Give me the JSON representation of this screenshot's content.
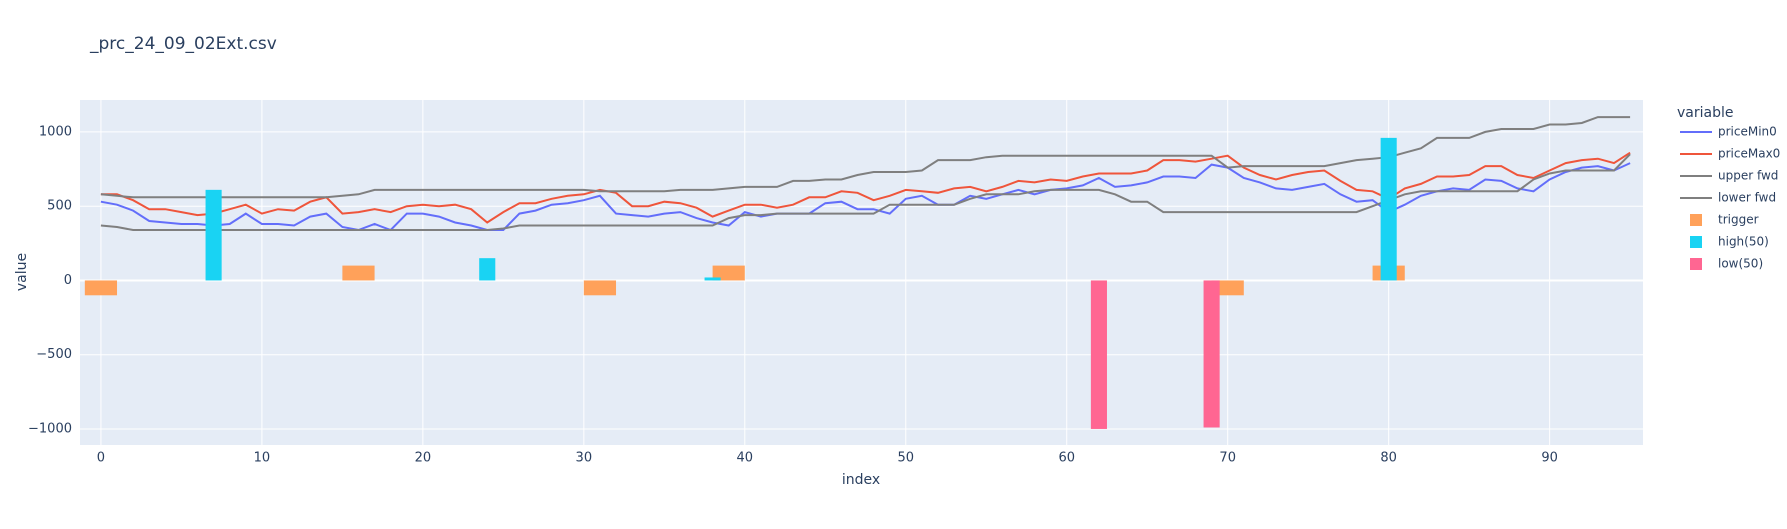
{
  "chart_data": {
    "type": "line",
    "title": "_prc_24_09_02Ext.csv",
    "x_label": "index",
    "y_label": "value",
    "legend_title": "variable",
    "x": [
      0,
      1,
      2,
      3,
      4,
      5,
      6,
      7,
      8,
      9,
      10,
      11,
      12,
      13,
      14,
      15,
      16,
      17,
      18,
      19,
      20,
      21,
      22,
      23,
      24,
      25,
      26,
      27,
      28,
      29,
      30,
      31,
      32,
      33,
      34,
      35,
      36,
      37,
      38,
      39,
      40,
      41,
      42,
      43,
      44,
      45,
      46,
      47,
      48,
      49,
      50,
      51,
      52,
      53,
      54,
      55,
      56,
      57,
      58,
      59,
      60,
      61,
      62,
      63,
      64,
      65,
      66,
      67,
      68,
      69,
      70,
      71,
      72,
      73,
      74,
      75,
      76,
      77,
      78,
      79,
      80,
      81,
      82,
      83,
      84,
      85,
      86,
      87,
      88,
      89,
      90,
      91,
      92,
      93,
      94,
      95
    ],
    "xlim": [
      -1.3,
      95.8
    ],
    "xticks": [
      0,
      10,
      20,
      30,
      40,
      50,
      60,
      70,
      80,
      90
    ],
    "ylim": [
      -1108,
      1215
    ],
    "yticks": [
      {
        "value": -1000,
        "label": "−1000"
      },
      {
        "value": -500,
        "label": "−500"
      },
      0,
      500,
      1000
    ],
    "grid": true,
    "series": [
      {
        "name": "priceMin0",
        "color": "#636efa",
        "kind": "line",
        "values": [
          530,
          510,
          470,
          400,
          390,
          380,
          380,
          370,
          380,
          450,
          380,
          380,
          370,
          430,
          450,
          360,
          340,
          380,
          340,
          450,
          450,
          430,
          390,
          370,
          340,
          340,
          450,
          470,
          510,
          520,
          540,
          570,
          450,
          440,
          430,
          450,
          460,
          420,
          390,
          370,
          460,
          430,
          450,
          450,
          450,
          520,
          530,
          480,
          480,
          450,
          550,
          570,
          510,
          510,
          570,
          550,
          580,
          610,
          580,
          610,
          620,
          640,
          690,
          630,
          640,
          660,
          700,
          700,
          690,
          780,
          760,
          690,
          660,
          620,
          610,
          630,
          650,
          580,
          530,
          540,
          460,
          510,
          570,
          600,
          620,
          610,
          680,
          670,
          620,
          600,
          680,
          730,
          760,
          770,
          740,
          790
        ]
      },
      {
        "name": "priceMax0",
        "color": "#EF553B",
        "kind": "line",
        "values": [
          580,
          580,
          540,
          480,
          480,
          460,
          440,
          450,
          480,
          510,
          450,
          480,
          470,
          530,
          560,
          450,
          460,
          480,
          460,
          500,
          510,
          500,
          510,
          480,
          390,
          460,
          520,
          520,
          550,
          570,
          580,
          610,
          590,
          500,
          500,
          530,
          520,
          490,
          430,
          470,
          510,
          510,
          490,
          510,
          560,
          560,
          600,
          590,
          540,
          570,
          610,
          600,
          590,
          620,
          630,
          600,
          630,
          670,
          660,
          680,
          670,
          700,
          720,
          720,
          720,
          740,
          810,
          810,
          800,
          820,
          840,
          760,
          710,
          680,
          710,
          730,
          740,
          670,
          610,
          600,
          550,
          620,
          650,
          700,
          700,
          710,
          770,
          770,
          710,
          690,
          740,
          790,
          810,
          820,
          790,
          860
        ]
      },
      {
        "name": "upper fwd",
        "color": "#7f7f7f",
        "kind": "line",
        "values": [
          580,
          570,
          560,
          560,
          560,
          560,
          560,
          560,
          560,
          560,
          560,
          560,
          560,
          560,
          560,
          570,
          580,
          610,
          610,
          610,
          610,
          610,
          610,
          610,
          610,
          610,
          610,
          610,
          610,
          610,
          610,
          600,
          600,
          600,
          600,
          600,
          610,
          610,
          610,
          620,
          630,
          630,
          630,
          670,
          670,
          680,
          680,
          710,
          730,
          730,
          730,
          740,
          810,
          810,
          810,
          830,
          840,
          840,
          840,
          840,
          840,
          840,
          840,
          840,
          840,
          840,
          840,
          840,
          840,
          840,
          760,
          770,
          770,
          770,
          770,
          770,
          770,
          790,
          810,
          820,
          830,
          860,
          890,
          960,
          960,
          960,
          1000,
          1020,
          1020,
          1020,
          1050,
          1050,
          1060,
          1100,
          1100,
          1100
        ]
      },
      {
        "name": "lower fwd",
        "color": "#7f7f7f",
        "kind": "line",
        "values": [
          370,
          360,
          340,
          340,
          340,
          340,
          340,
          340,
          340,
          340,
          340,
          340,
          340,
          340,
          340,
          340,
          340,
          340,
          340,
          340,
          340,
          340,
          340,
          340,
          340,
          350,
          370,
          370,
          370,
          370,
          370,
          370,
          370,
          370,
          370,
          370,
          370,
          370,
          370,
          420,
          440,
          440,
          450,
          450,
          450,
          450,
          450,
          450,
          450,
          510,
          510,
          510,
          510,
          510,
          550,
          580,
          580,
          580,
          600,
          610,
          610,
          610,
          610,
          580,
          530,
          530,
          460,
          460,
          460,
          460,
          460,
          460,
          460,
          460,
          460,
          460,
          460,
          460,
          460,
          500,
          540,
          580,
          600,
          600,
          600,
          600,
          600,
          600,
          600,
          680,
          720,
          740,
          740,
          740,
          740,
          850
        ]
      },
      {
        "name": "trigger",
        "color": "#FFA15A",
        "kind": "bar",
        "x": [
          0,
          16,
          31,
          39,
          70,
          80
        ],
        "values": [
          -100,
          100,
          -100,
          100,
          -100,
          100
        ]
      },
      {
        "name": "high(50)",
        "color": "#19D3F3",
        "kind": "bar",
        "x": [
          7,
          24,
          38,
          80
        ],
        "values": [
          610,
          150,
          20,
          960
        ]
      },
      {
        "name": "low(50)",
        "color": "#FF6692",
        "kind": "bar",
        "x": [
          62,
          69
        ],
        "values": [
          -1000,
          -990
        ]
      }
    ]
  }
}
